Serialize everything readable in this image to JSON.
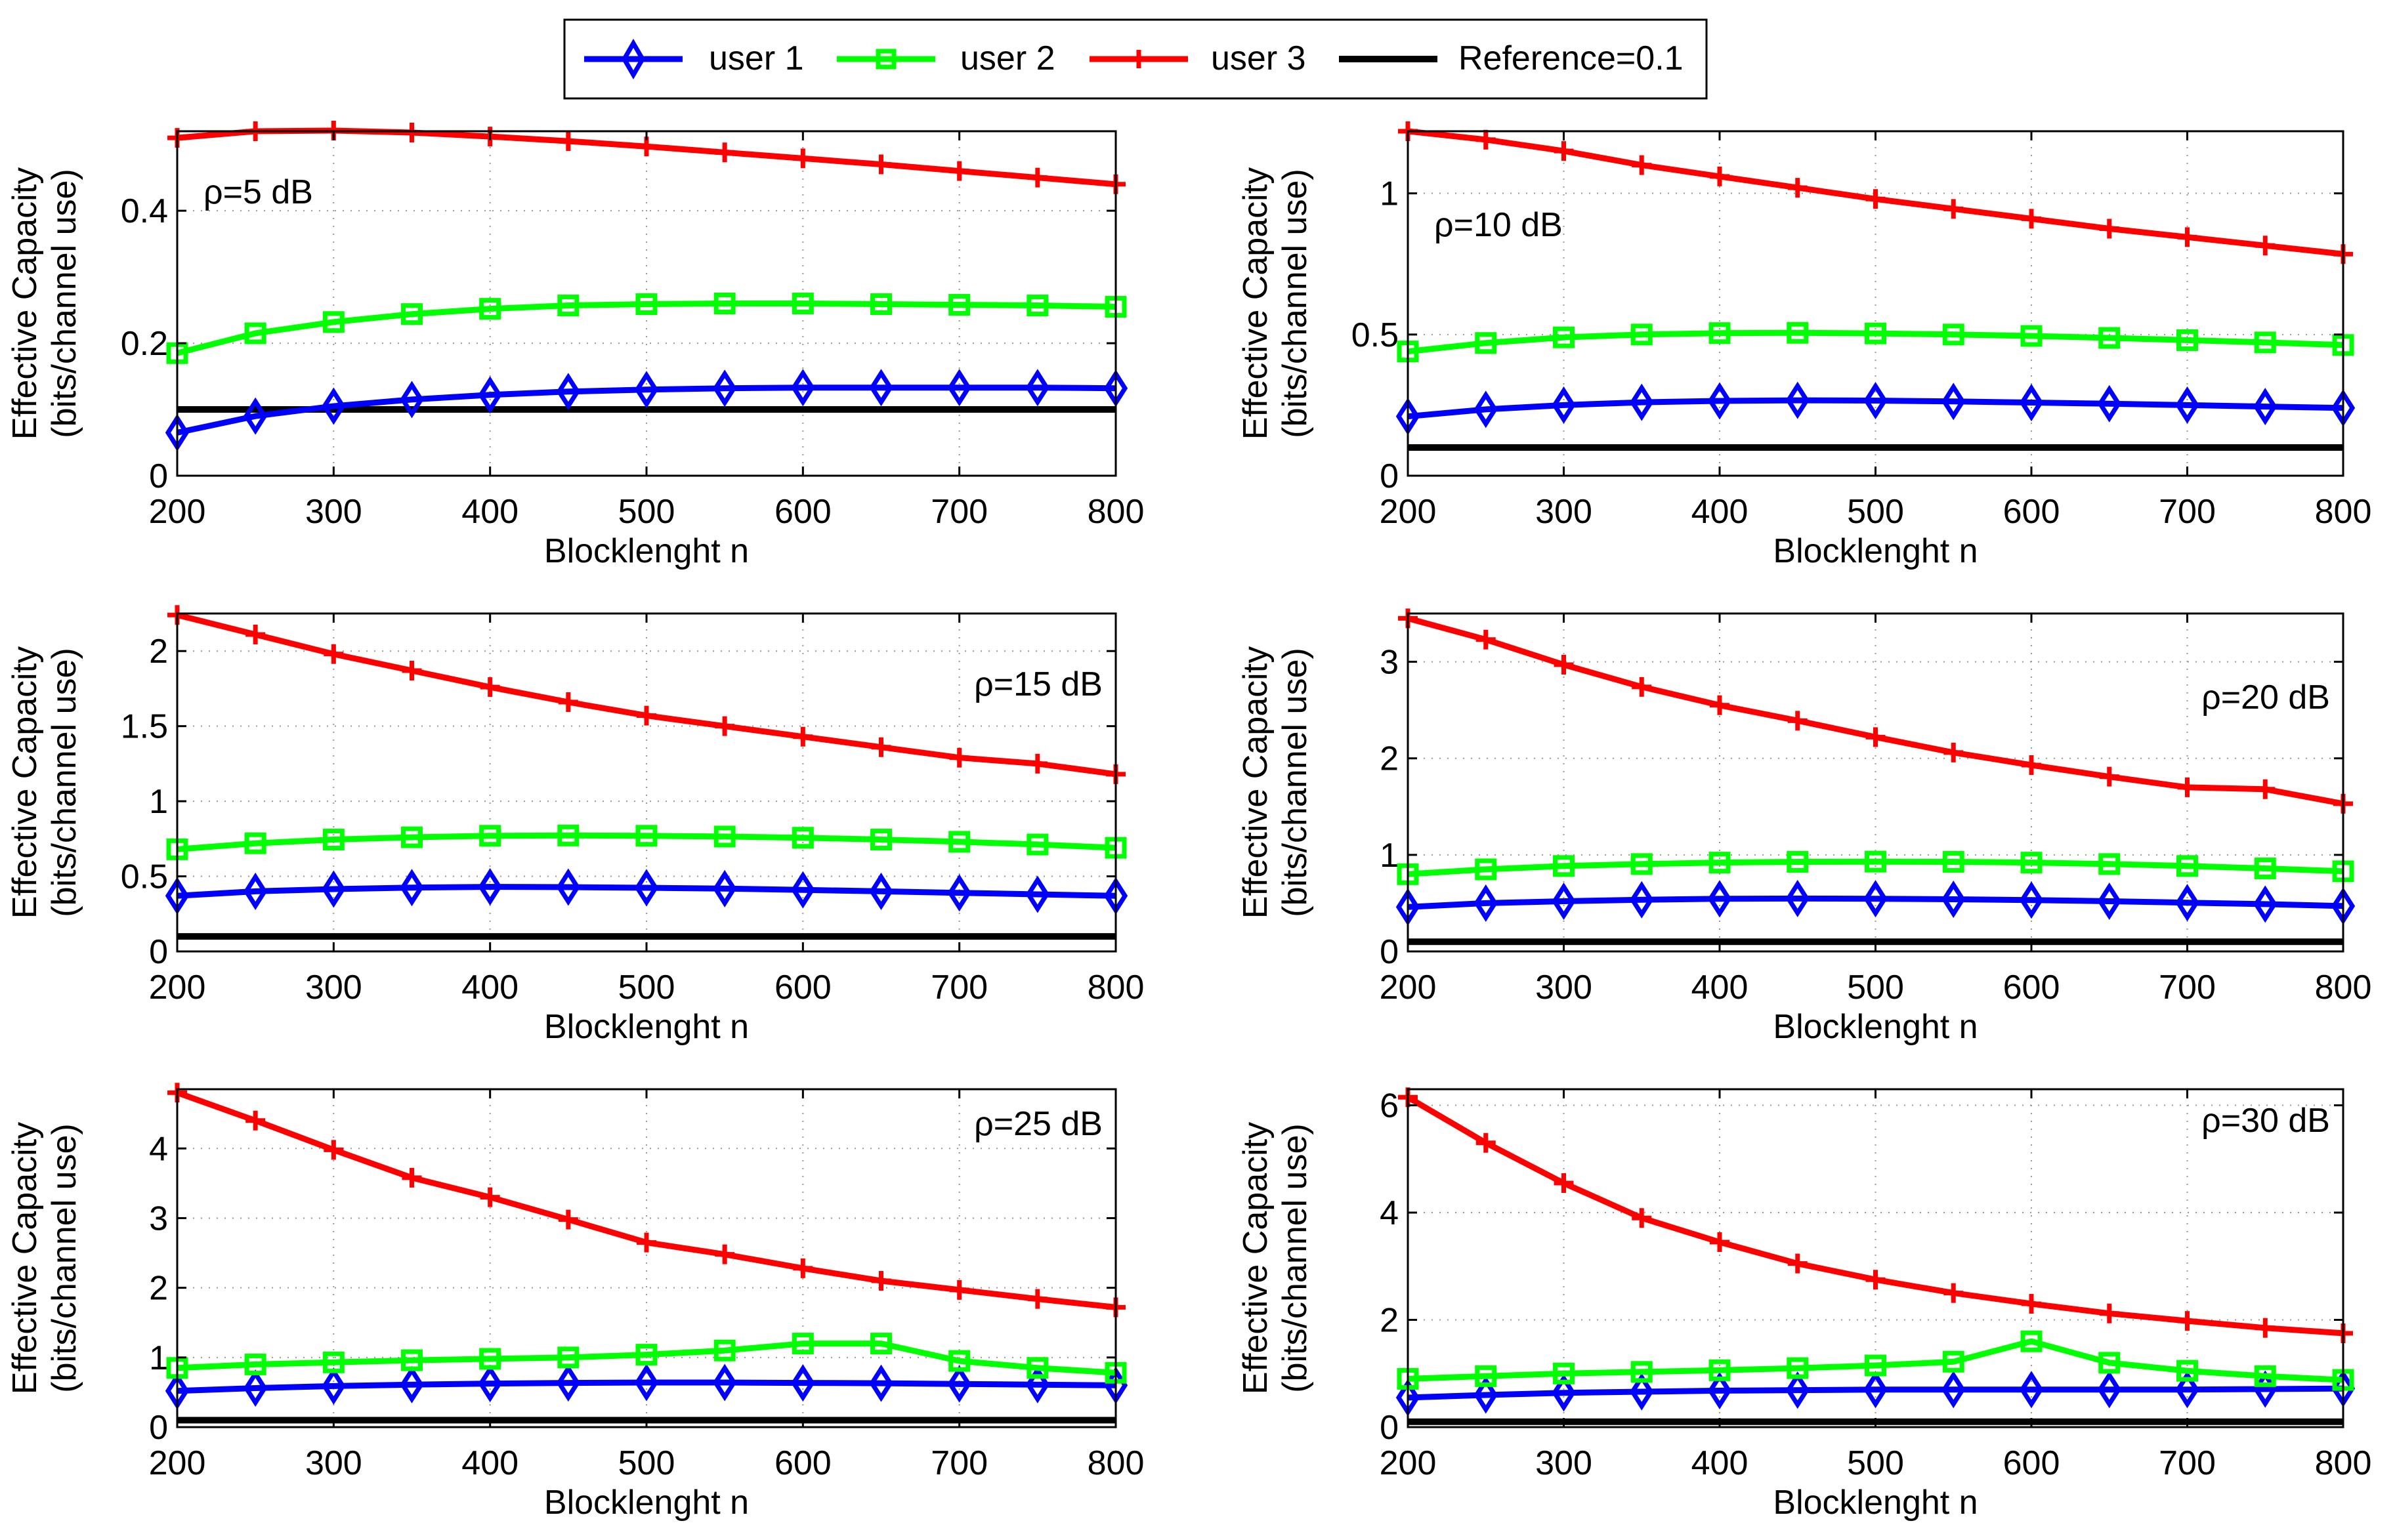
{
  "legend": {
    "items": [
      {
        "label": "user 1",
        "color": "#0000ff",
        "marker": "diamond"
      },
      {
        "label": "user 2",
        "color": "#00ff00",
        "marker": "square"
      },
      {
        "label": "user 3",
        "color": "#ff0000",
        "marker": "plus"
      },
      {
        "label": "Reference=0.1",
        "color": "#000000",
        "marker": "none"
      }
    ]
  },
  "chart_data": [
    {
      "type": "line",
      "annotation": "ρ=5 dB",
      "xlabel": "Blocklenght n",
      "ylabel_lines": [
        "Effective Capacity",
        "(bits/channel use)"
      ],
      "xlim": [
        200,
        800
      ],
      "ylim": [
        0,
        0.52
      ],
      "xticks": [
        200,
        300,
        400,
        500,
        600,
        700,
        800
      ],
      "yticks": [
        0,
        0.2,
        0.4
      ],
      "ytick_labels": [
        "0",
        "0.2",
        "0.4"
      ],
      "grid": true,
      "x": [
        200,
        250,
        300,
        350,
        400,
        450,
        500,
        550,
        600,
        650,
        700,
        750,
        800
      ],
      "series": [
        {
          "name": "user 1",
          "values": [
            0.065,
            0.09,
            0.105,
            0.115,
            0.122,
            0.127,
            0.13,
            0.132,
            0.133,
            0.133,
            0.133,
            0.133,
            0.132
          ]
        },
        {
          "name": "user 2",
          "values": [
            0.185,
            0.215,
            0.232,
            0.244,
            0.252,
            0.257,
            0.259,
            0.26,
            0.26,
            0.259,
            0.258,
            0.257,
            0.255
          ]
        },
        {
          "name": "user 3",
          "values": [
            0.51,
            0.52,
            0.521,
            0.518,
            0.512,
            0.505,
            0.497,
            0.488,
            0.479,
            0.47,
            0.46,
            0.45,
            0.44
          ]
        },
        {
          "name": "Reference=0.1",
          "values": [
            0.1,
            0.1,
            0.1,
            0.1,
            0.1,
            0.1,
            0.1,
            0.1,
            0.1,
            0.1,
            0.1,
            0.1,
            0.1
          ]
        }
      ]
    },
    {
      "type": "line",
      "annotation": "ρ=10 dB",
      "xlabel": "Blocklenght n",
      "ylabel_lines": [
        "Effective Capacity",
        "(bits/channel use)"
      ],
      "xlim": [
        200,
        800
      ],
      "ylim": [
        0,
        1.22
      ],
      "xticks": [
        200,
        300,
        400,
        500,
        600,
        700,
        800
      ],
      "yticks": [
        0,
        0.5,
        1
      ],
      "ytick_labels": [
        "0",
        "0.5",
        "1"
      ],
      "grid": true,
      "x": [
        200,
        250,
        300,
        350,
        400,
        450,
        500,
        550,
        600,
        650,
        700,
        750,
        800
      ],
      "series": [
        {
          "name": "user 1",
          "values": [
            0.21,
            0.235,
            0.25,
            0.26,
            0.265,
            0.267,
            0.266,
            0.263,
            0.259,
            0.255,
            0.25,
            0.245,
            0.24
          ]
        },
        {
          "name": "user 2",
          "values": [
            0.44,
            0.47,
            0.49,
            0.5,
            0.505,
            0.506,
            0.504,
            0.5,
            0.495,
            0.488,
            0.48,
            0.472,
            0.463
          ]
        },
        {
          "name": "user 3",
          "values": [
            1.22,
            1.19,
            1.15,
            1.1,
            1.06,
            1.02,
            0.98,
            0.945,
            0.91,
            0.875,
            0.845,
            0.815,
            0.785
          ]
        },
        {
          "name": "Reference=0.1",
          "values": [
            0.1,
            0.1,
            0.1,
            0.1,
            0.1,
            0.1,
            0.1,
            0.1,
            0.1,
            0.1,
            0.1,
            0.1,
            0.1
          ]
        }
      ]
    },
    {
      "type": "line",
      "annotation": "ρ=15 dB",
      "xlabel": "Blocklenght n",
      "ylabel_lines": [
        "Effective Capacity",
        "(bits/channel use)"
      ],
      "xlim": [
        200,
        800
      ],
      "ylim": [
        0,
        2.25
      ],
      "xticks": [
        200,
        300,
        400,
        500,
        600,
        700,
        800
      ],
      "yticks": [
        0,
        0.5,
        1,
        1.5,
        2
      ],
      "ytick_labels": [
        "0",
        "0.5",
        "1",
        "1.5",
        "2"
      ],
      "grid": true,
      "x": [
        200,
        250,
        300,
        350,
        400,
        450,
        500,
        550,
        600,
        650,
        700,
        750,
        800
      ],
      "series": [
        {
          "name": "user 1",
          "values": [
            0.37,
            0.4,
            0.415,
            0.425,
            0.43,
            0.428,
            0.424,
            0.418,
            0.41,
            0.4,
            0.39,
            0.38,
            0.37
          ]
        },
        {
          "name": "user 2",
          "values": [
            0.68,
            0.72,
            0.745,
            0.76,
            0.77,
            0.772,
            0.77,
            0.765,
            0.757,
            0.745,
            0.73,
            0.712,
            0.69
          ]
        },
        {
          "name": "user 3",
          "values": [
            2.24,
            2.11,
            1.98,
            1.87,
            1.76,
            1.66,
            1.57,
            1.5,
            1.43,
            1.36,
            1.29,
            1.25,
            1.18
          ]
        },
        {
          "name": "Reference=0.1",
          "values": [
            0.1,
            0.1,
            0.1,
            0.1,
            0.1,
            0.1,
            0.1,
            0.1,
            0.1,
            0.1,
            0.1,
            0.1,
            0.1
          ]
        }
      ]
    },
    {
      "type": "line",
      "annotation": "ρ=20 dB",
      "xlabel": "Blocklenght n",
      "ylabel_lines": [
        "Effective Capacity",
        "(bits/channel use)"
      ],
      "xlim": [
        200,
        800
      ],
      "ylim": [
        0,
        3.5
      ],
      "xticks": [
        200,
        300,
        400,
        500,
        600,
        700,
        800
      ],
      "yticks": [
        0,
        1,
        2,
        3
      ],
      "ytick_labels": [
        "0",
        "1",
        "2",
        "3"
      ],
      "grid": true,
      "x": [
        200,
        250,
        300,
        350,
        400,
        450,
        500,
        550,
        600,
        650,
        700,
        750,
        800
      ],
      "series": [
        {
          "name": "user 1",
          "values": [
            0.46,
            0.5,
            0.52,
            0.535,
            0.545,
            0.548,
            0.546,
            0.54,
            0.532,
            0.52,
            0.505,
            0.49,
            0.47
          ]
        },
        {
          "name": "user 2",
          "values": [
            0.8,
            0.85,
            0.885,
            0.905,
            0.92,
            0.928,
            0.93,
            0.928,
            0.92,
            0.905,
            0.885,
            0.86,
            0.83
          ]
        },
        {
          "name": "user 3",
          "values": [
            3.45,
            3.23,
            2.97,
            2.74,
            2.55,
            2.39,
            2.22,
            2.06,
            1.93,
            1.81,
            1.7,
            1.68,
            1.53
          ]
        },
        {
          "name": "Reference=0.1",
          "values": [
            0.1,
            0.1,
            0.1,
            0.1,
            0.1,
            0.1,
            0.1,
            0.1,
            0.1,
            0.1,
            0.1,
            0.1,
            0.1
          ]
        }
      ]
    },
    {
      "type": "line",
      "annotation": "ρ=25 dB",
      "xlabel": "Blocklenght n",
      "ylabel_lines": [
        "Effective Capacity",
        "(bits/channel use)"
      ],
      "xlim": [
        200,
        800
      ],
      "ylim": [
        0,
        4.85
      ],
      "xticks": [
        200,
        300,
        400,
        500,
        600,
        700,
        800
      ],
      "yticks": [
        0,
        1,
        2,
        3,
        4
      ],
      "ytick_labels": [
        "0",
        "1",
        "2",
        "3",
        "4"
      ],
      "grid": true,
      "x": [
        200,
        250,
        300,
        350,
        400,
        450,
        500,
        550,
        600,
        650,
        700,
        750,
        800
      ],
      "series": [
        {
          "name": "user 1",
          "values": [
            0.52,
            0.56,
            0.59,
            0.61,
            0.625,
            0.635,
            0.64,
            0.64,
            0.635,
            0.63,
            0.62,
            0.61,
            0.6
          ]
        },
        {
          "name": "user 2",
          "values": [
            0.85,
            0.9,
            0.93,
            0.96,
            0.98,
            1.0,
            1.04,
            1.1,
            1.2,
            1.2,
            0.95,
            0.85,
            0.78
          ]
        },
        {
          "name": "user 3",
          "values": [
            4.8,
            4.4,
            3.98,
            3.58,
            3.3,
            2.98,
            2.65,
            2.48,
            2.28,
            2.1,
            1.97,
            1.84,
            1.72
          ]
        },
        {
          "name": "Reference=0.1",
          "values": [
            0.1,
            0.1,
            0.1,
            0.1,
            0.1,
            0.1,
            0.1,
            0.1,
            0.1,
            0.1,
            0.1,
            0.1,
            0.1
          ]
        }
      ]
    },
    {
      "type": "line",
      "annotation": "ρ=30 dB",
      "xlabel": "Blocklenght n",
      "ylabel_lines": [
        "Effective Capacity",
        "(bits/channel use)"
      ],
      "xlim": [
        200,
        800
      ],
      "ylim": [
        0,
        6.3
      ],
      "xticks": [
        200,
        300,
        400,
        500,
        600,
        700,
        800
      ],
      "yticks": [
        0,
        2,
        4,
        6
      ],
      "ytick_labels": [
        "0",
        "2",
        "4",
        "6"
      ],
      "grid": true,
      "x": [
        200,
        250,
        300,
        350,
        400,
        450,
        500,
        550,
        600,
        650,
        700,
        750,
        800
      ],
      "series": [
        {
          "name": "user 1",
          "values": [
            0.55,
            0.6,
            0.64,
            0.66,
            0.68,
            0.69,
            0.7,
            0.7,
            0.7,
            0.7,
            0.7,
            0.71,
            0.72
          ]
        },
        {
          "name": "user 2",
          "values": [
            0.9,
            0.95,
            1.0,
            1.03,
            1.06,
            1.1,
            1.15,
            1.22,
            1.6,
            1.2,
            1.05,
            0.95,
            0.88
          ]
        },
        {
          "name": "user 3",
          "values": [
            6.15,
            5.3,
            4.55,
            3.9,
            3.45,
            3.05,
            2.75,
            2.5,
            2.3,
            2.12,
            1.98,
            1.85,
            1.75
          ]
        },
        {
          "name": "Reference=0.1",
          "values": [
            0.1,
            0.1,
            0.1,
            0.1,
            0.1,
            0.1,
            0.1,
            0.1,
            0.1,
            0.1,
            0.1,
            0.1,
            0.1
          ]
        }
      ]
    }
  ]
}
